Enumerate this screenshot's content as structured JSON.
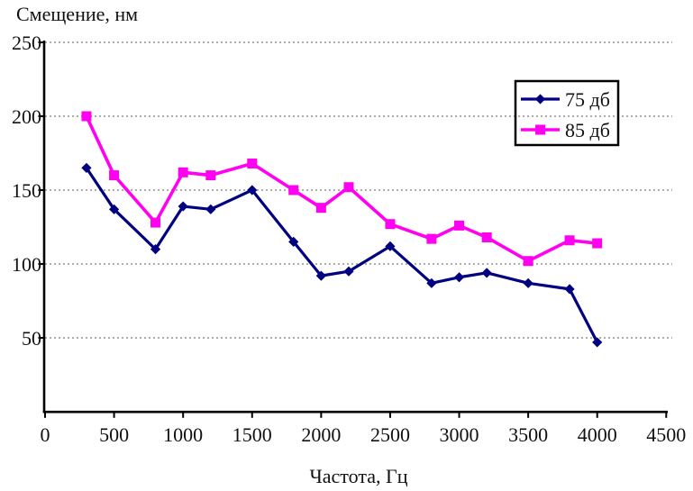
{
  "chart_data": {
    "type": "line",
    "title": "Смещение, нм",
    "xlabel": "Частота, Гц",
    "ylabel": "Смещение, нм",
    "x": [
      300,
      500,
      800,
      1000,
      1200,
      1500,
      1800,
      2000,
      2200,
      2500,
      2800,
      3000,
      3200,
      3500,
      3800,
      4000
    ],
    "series": [
      {
        "name": "75 дб",
        "color": "#000080",
        "marker": "diamond",
        "values": [
          165,
          137,
          110,
          139,
          137,
          150,
          115,
          92,
          95,
          112,
          87,
          91,
          94,
          87,
          83,
          47
        ]
      },
      {
        "name": "85 дб",
        "color": "#FF00F0",
        "marker": "square",
        "values": [
          200,
          160,
          128,
          162,
          160,
          168,
          150,
          138,
          152,
          127,
          117,
          126,
          118,
          102,
          116,
          114
        ]
      }
    ],
    "xlim": [
      0,
      4500
    ],
    "ylim": [
      0,
      250
    ],
    "xticks": [
      0,
      500,
      1000,
      1500,
      2000,
      2500,
      3000,
      3500,
      4000,
      4500
    ],
    "yticks": [
      50,
      100,
      150,
      200,
      250
    ],
    "grid": "horizontal-dotted",
    "grid_color": "#ADADAD",
    "axis_color": "#000000",
    "background": "#FFFFFF",
    "legend_position": "top-right"
  }
}
